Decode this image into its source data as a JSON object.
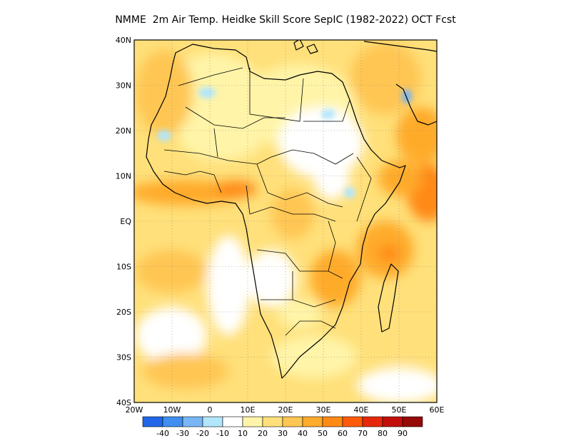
{
  "title": "NMME  2m Air Temp. Heidke Skill Score SepIC (1982-2022) OCT Fcst",
  "lat_labels": [
    "40N",
    "30N",
    "20N",
    "10N",
    "EQ",
    "10S",
    "20S",
    "30S",
    "40S"
  ],
  "lon_labels": [
    "20W",
    "10W",
    "0",
    "10E",
    "20E",
    "30E",
    "40E",
    "50E",
    "60E"
  ],
  "colorbar": {
    "colors": [
      "#2166e8",
      "#3f8ef0",
      "#78b6f5",
      "#b2e6fc",
      "#ffffff",
      "#fff4a8",
      "#ffe07a",
      "#ffc652",
      "#ffab2b",
      "#ff8a14",
      "#ff5a0a",
      "#e6280a",
      "#c30f0a",
      "#960a08"
    ],
    "tick_labels": [
      "-40",
      "-30",
      "-20",
      "-10",
      "10",
      "20",
      "30",
      "40",
      "50",
      "60",
      "70",
      "80",
      "90"
    ]
  },
  "colors": {
    "land_outline": "#000000",
    "frame": "#000000",
    "grid": "#888888"
  }
}
